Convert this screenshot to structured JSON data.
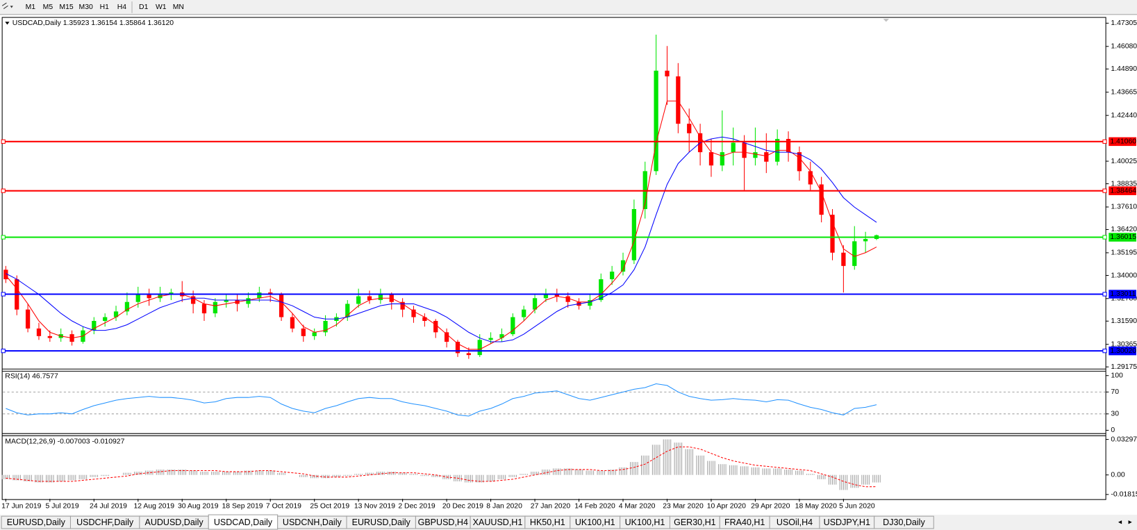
{
  "toolbar": {
    "timeframes": [
      "M1",
      "M5",
      "M15",
      "M30",
      "H1",
      "H4",
      "D1",
      "W1",
      "MN"
    ]
  },
  "tabs": {
    "items": [
      "EURUSD,Daily",
      "USDCHF,Daily",
      "AUDUSD,Daily",
      "USDCAD,Daily",
      "USDCNH,Daily",
      "EURUSD,Daily",
      "GBPUSD,H4",
      "XAUUSD,H1",
      "HK50,H1",
      "UK100,H1",
      "UK100,H1",
      "GER30,H1",
      "FRA40,H1",
      "USOil,H4",
      "USDJPY,H1",
      "DJ30,Daily"
    ],
    "active": 3
  },
  "chart_data": [
    {
      "type": "candlestick",
      "title": "USDCAD,Daily  1.35923 1.36154 1.35864 1.36120",
      "up_color": "#00e600",
      "down_color": "#ff0000",
      "categories": [
        "17 Jun 2019",
        null,
        null,
        null,
        "5 Jul 2019",
        null,
        null,
        null,
        "24 Jul 2019",
        null,
        null,
        null,
        "12 Aug 2019",
        null,
        null,
        null,
        "30 Aug 2019",
        null,
        null,
        null,
        "18 Sep 2019",
        null,
        null,
        null,
        "7 Oct 2019",
        null,
        null,
        null,
        "25 Oct 2019",
        null,
        null,
        null,
        "13 Nov 2019",
        null,
        null,
        null,
        "2 Dec 2019",
        null,
        null,
        null,
        "20 Dec 2019",
        null,
        null,
        null,
        "8 Jan 2020",
        null,
        null,
        null,
        "27 Jan 2020",
        null,
        null,
        null,
        "14 Feb 2020",
        null,
        null,
        null,
        "4 Mar 2020",
        null,
        null,
        null,
        "23 Mar 2020",
        null,
        null,
        null,
        "10 Apr 2020",
        null,
        null,
        null,
        "29 Apr 2020",
        null,
        null,
        null,
        "18 May 2020",
        null,
        null,
        null,
        "5 Jun 2020",
        null,
        null,
        null
      ],
      "ohlc": [
        [
          1.343,
          1.345,
          1.336,
          1.338
        ],
        [
          1.338,
          1.34,
          1.319,
          1.322
        ],
        [
          1.322,
          1.325,
          1.31,
          1.312
        ],
        [
          1.312,
          1.315,
          1.306,
          1.308
        ],
        [
          1.308,
          1.311,
          1.305,
          1.307
        ],
        [
          1.307,
          1.312,
          1.305,
          1.309
        ],
        [
          1.309,
          1.311,
          1.303,
          1.305
        ],
        [
          1.305,
          1.313,
          1.304,
          1.311
        ],
        [
          1.311,
          1.318,
          1.309,
          1.316
        ],
        [
          1.316,
          1.32,
          1.313,
          1.318
        ],
        [
          1.318,
          1.324,
          1.316,
          1.321
        ],
        [
          1.321,
          1.331,
          1.319,
          1.326
        ],
        [
          1.326,
          1.334,
          1.323,
          1.33
        ],
        [
          1.33,
          1.333,
          1.324,
          1.328
        ],
        [
          1.328,
          1.334,
          1.326,
          1.33
        ],
        [
          1.33,
          1.333,
          1.327,
          1.331
        ],
        [
          1.331,
          1.337,
          1.326,
          1.329
        ],
        [
          1.329,
          1.332,
          1.32,
          1.325
        ],
        [
          1.325,
          1.327,
          1.316,
          1.32
        ],
        [
          1.32,
          1.328,
          1.318,
          1.326
        ],
        [
          1.326,
          1.33,
          1.323,
          1.327
        ],
        [
          1.327,
          1.33,
          1.321,
          1.325
        ],
        [
          1.325,
          1.331,
          1.323,
          1.328
        ],
        [
          1.328,
          1.334,
          1.326,
          1.331
        ],
        [
          1.331,
          1.333,
          1.326,
          1.33
        ],
        [
          1.33,
          1.331,
          1.316,
          1.318
        ],
        [
          1.318,
          1.32,
          1.31,
          1.312
        ],
        [
          1.312,
          1.314,
          1.305,
          1.308
        ],
        [
          1.308,
          1.312,
          1.306,
          1.31
        ],
        [
          1.31,
          1.319,
          1.308,
          1.316
        ],
        [
          1.316,
          1.32,
          1.313,
          1.318
        ],
        [
          1.318,
          1.327,
          1.316,
          1.325
        ],
        [
          1.325,
          1.333,
          1.323,
          1.329
        ],
        [
          1.329,
          1.332,
          1.325,
          1.327
        ],
        [
          1.327,
          1.333,
          1.325,
          1.33
        ],
        [
          1.33,
          1.331,
          1.322,
          1.326
        ],
        [
          1.326,
          1.328,
          1.318,
          1.322
        ],
        [
          1.322,
          1.324,
          1.315,
          1.318
        ],
        [
          1.318,
          1.32,
          1.313,
          1.316
        ],
        [
          1.316,
          1.317,
          1.307,
          1.31
        ],
        [
          1.31,
          1.312,
          1.302,
          1.305
        ],
        [
          1.305,
          1.306,
          1.297,
          1.299
        ],
        [
          1.299,
          1.302,
          1.296,
          1.298
        ],
        [
          1.298,
          1.309,
          1.297,
          1.306
        ],
        [
          1.306,
          1.31,
          1.304,
          1.307
        ],
        [
          1.307,
          1.312,
          1.305,
          1.309
        ],
        [
          1.309,
          1.32,
          1.308,
          1.318
        ],
        [
          1.318,
          1.324,
          1.316,
          1.322
        ],
        [
          1.322,
          1.33,
          1.32,
          1.328
        ],
        [
          1.328,
          1.333,
          1.326,
          1.33
        ],
        [
          1.33,
          1.333,
          1.326,
          1.329
        ],
        [
          1.329,
          1.331,
          1.323,
          1.326
        ],
        [
          1.326,
          1.328,
          1.322,
          1.324
        ],
        [
          1.324,
          1.33,
          1.322,
          1.327
        ],
        [
          1.327,
          1.341,
          1.326,
          1.338
        ],
        [
          1.338,
          1.345,
          1.335,
          1.342
        ],
        [
          1.342,
          1.352,
          1.34,
          1.348
        ],
        [
          1.348,
          1.38,
          1.346,
          1.375
        ],
        [
          1.375,
          1.4,
          1.37,
          1.395
        ],
        [
          1.395,
          1.467,
          1.393,
          1.448
        ],
        [
          1.448,
          1.461,
          1.43,
          1.445
        ],
        [
          1.445,
          1.452,
          1.415,
          1.42
        ],
        [
          1.42,
          1.428,
          1.405,
          1.415
        ],
        [
          1.415,
          1.42,
          1.398,
          1.405
        ],
        [
          1.405,
          1.412,
          1.392,
          1.398
        ],
        [
          1.398,
          1.427,
          1.395,
          1.405
        ],
        [
          1.405,
          1.418,
          1.398,
          1.41
        ],
        [
          1.41,
          1.414,
          1.385,
          1.402
        ],
        [
          1.402,
          1.418,
          1.398,
          1.405
        ],
        [
          1.405,
          1.415,
          1.394,
          1.4
        ],
        [
          1.4,
          1.417,
          1.398,
          1.412
        ],
        [
          1.412,
          1.416,
          1.4,
          1.405
        ],
        [
          1.405,
          1.408,
          1.39,
          1.395
        ],
        [
          1.395,
          1.4,
          1.385,
          1.388
        ],
        [
          1.388,
          1.392,
          1.368,
          1.372
        ],
        [
          1.372,
          1.375,
          1.348,
          1.352
        ],
        [
          1.352,
          1.356,
          1.331,
          1.345
        ],
        [
          1.345,
          1.366,
          1.343,
          1.358
        ],
        [
          1.358,
          1.363,
          1.352,
          1.35923
        ],
        [
          1.35923,
          1.36154,
          1.35864,
          1.3612
        ]
      ],
      "lines": [
        {
          "color": "#ff0000",
          "values": [
            1.34,
            1.333,
            1.325,
            1.316,
            1.31,
            1.308,
            1.307,
            1.308,
            1.312,
            1.315,
            1.318,
            1.322,
            1.325,
            1.327,
            1.329,
            1.33,
            1.33,
            1.328,
            1.325,
            1.324,
            1.325,
            1.326,
            1.327,
            1.328,
            1.329,
            1.326,
            1.32,
            1.313,
            1.31,
            1.311,
            1.314,
            1.319,
            1.324,
            1.327,
            1.328,
            1.328,
            1.325,
            1.321,
            1.318,
            1.314,
            1.309,
            1.304,
            1.301,
            1.301,
            1.304,
            1.307,
            1.311,
            1.316,
            1.322,
            1.327,
            1.329,
            1.328,
            1.326,
            1.326,
            1.33,
            1.336,
            1.343,
            1.358,
            1.378,
            1.41,
            1.432,
            1.432,
            1.423,
            1.413,
            1.405,
            1.403,
            1.405,
            1.405,
            1.404,
            1.403,
            1.406,
            1.406,
            1.402,
            1.395,
            1.384,
            1.368,
            1.354,
            1.35,
            1.352,
            1.355
          ]
        },
        {
          "color": "#0000ff",
          "values": [
            1.341,
            1.338,
            1.334,
            1.33,
            1.325,
            1.32,
            1.316,
            1.313,
            1.311,
            1.311,
            1.312,
            1.314,
            1.317,
            1.32,
            1.323,
            1.325,
            1.327,
            1.328,
            1.328,
            1.327,
            1.327,
            1.327,
            1.327,
            1.327,
            1.327,
            1.326,
            1.324,
            1.321,
            1.318,
            1.317,
            1.317,
            1.318,
            1.32,
            1.322,
            1.324,
            1.325,
            1.325,
            1.325,
            1.323,
            1.321,
            1.318,
            1.314,
            1.31,
            1.307,
            1.305,
            1.305,
            1.306,
            1.309,
            1.313,
            1.317,
            1.321,
            1.324,
            1.325,
            1.326,
            1.328,
            1.331,
            1.335,
            1.343,
            1.355,
            1.372,
            1.388,
            1.399,
            1.405,
            1.41,
            1.412,
            1.413,
            1.412,
            1.41,
            1.408,
            1.406,
            1.405,
            1.405,
            1.404,
            1.401,
            1.396,
            1.389,
            1.381,
            1.376,
            1.372,
            1.368
          ]
        }
      ],
      "levels": [
        {
          "value": 1.4106,
          "label": "1.41060",
          "color": "#ff0000"
        },
        {
          "value": 1.38464,
          "label": "1.38464",
          "color": "#ff0000"
        },
        {
          "value": 1.36015,
          "label": "1.36015",
          "color": "#00e600"
        },
        {
          "value": 1.33011,
          "label": "1.33011",
          "color": "#0000ff"
        },
        {
          "value": 1.3002,
          "label": "1.30020",
          "color": "#0000ff"
        }
      ],
      "ylim": [
        1.291,
        1.4761
      ],
      "yticks": [
        1.47305,
        {
          "value": 1.4608,
          "label": "1.46080"
        },
        {
          "value": 1.4489,
          "label": "1.44890"
        },
        1.43665,
        {
          "value": 1.4244,
          "label": "1.42440"
        },
        1.40025,
        1.38835,
        {
          "value": 1.3761,
          "label": "1.37610"
        },
        {
          "value": 1.3642,
          "label": "1.36420"
        },
        1.35195,
        {
          "value": 1.34,
          "label": "1.34000"
        },
        {
          "value": 1.3278,
          "label": "1.32780"
        },
        {
          "value": 1.3159,
          "label": "1.31590"
        },
        1.30365,
        1.29175
      ]
    },
    {
      "type": "line",
      "title": "RSI(14) 46.7577",
      "color": "#1e90ff",
      "values": [
        40,
        32,
        28,
        30,
        30,
        32,
        30,
        38,
        45,
        50,
        55,
        58,
        60,
        62,
        60,
        60,
        58,
        55,
        50,
        52,
        58,
        60,
        60,
        62,
        60,
        48,
        40,
        35,
        32,
        40,
        45,
        52,
        58,
        60,
        58,
        58,
        52,
        48,
        45,
        40,
        35,
        28,
        26,
        35,
        40,
        48,
        58,
        62,
        68,
        70,
        72,
        65,
        58,
        55,
        60,
        65,
        70,
        75,
        78,
        85,
        82,
        70,
        62,
        58,
        55,
        56,
        58,
        56,
        55,
        52,
        56,
        55,
        48,
        42,
        38,
        32,
        28,
        40,
        42,
        46.7577
      ],
      "ylim": [
        -6,
        108
      ],
      "yticks": [
        100,
        70,
        30,
        0
      ]
    },
    {
      "type": "macd",
      "title": "MACD(12,26,9) -0.007003 -0.010927",
      "bar_color": "#a0a0a0",
      "signal_color": "#ff0000",
      "values": [
        -0.004,
        -0.005,
        -0.006,
        -0.007,
        -0.007,
        -0.006,
        -0.005,
        -0.004,
        -0.002,
        -0.001,
        0,
        0.002,
        0.003,
        0.004,
        0.005,
        0.005,
        0.005,
        0.004,
        0.003,
        0.003,
        0.003,
        0.003,
        0.004,
        0.004,
        0.004,
        0.002,
        0,
        -0.002,
        -0.003,
        -0.003,
        -0.002,
        -0.001,
        0.001,
        0.002,
        0.003,
        0.003,
        0.002,
        0.001,
        -0.001,
        -0.002,
        -0.004,
        -0.006,
        -0.007,
        -0.007,
        -0.006,
        -0.004,
        -0.002,
        0.001,
        0.003,
        0.005,
        0.006,
        0.006,
        0.005,
        0.004,
        0.004,
        0.005,
        0.007,
        0.012,
        0.018,
        0.028,
        0.033,
        0.03,
        0.024,
        0.018,
        0.013,
        0.01,
        0.009,
        0.008,
        0.007,
        0.006,
        0.006,
        0.005,
        0.004,
        0.001,
        -0.004,
        -0.009,
        -0.014,
        -0.012,
        -0.009,
        -0.007003
      ],
      "signal": [
        -0.003,
        -0.004,
        -0.005,
        -0.006,
        -0.006,
        -0.006,
        -0.006,
        -0.005,
        -0.004,
        -0.003,
        -0.002,
        -0.001,
        0.001,
        0.002,
        0.003,
        0.004,
        0.004,
        0.004,
        0.004,
        0.004,
        0.003,
        0.003,
        0.003,
        0.004,
        0.004,
        0.003,
        0.002,
        0.001,
        -0.001,
        -0.002,
        -0.002,
        -0.002,
        -0.001,
        0,
        0.001,
        0.002,
        0.002,
        0.002,
        0.001,
        0,
        -0.002,
        -0.003,
        -0.005,
        -0.006,
        -0.006,
        -0.005,
        -0.004,
        -0.002,
        0,
        0.002,
        0.004,
        0.005,
        0.005,
        0.005,
        0.004,
        0.004,
        0.005,
        0.007,
        0.01,
        0.016,
        0.022,
        0.026,
        0.026,
        0.024,
        0.02,
        0.016,
        0.013,
        0.011,
        0.009,
        0.008,
        0.007,
        0.006,
        0.005,
        0.004,
        0.001,
        -0.002,
        -0.006,
        -0.009,
        -0.011,
        -0.010927
      ],
      "ylim": [
        -0.0222,
        0.0357
      ],
      "yticks": [
        0.032972,
        {
          "value": 0,
          "label": "0.00"
        },
        -0.018154
      ]
    }
  ]
}
